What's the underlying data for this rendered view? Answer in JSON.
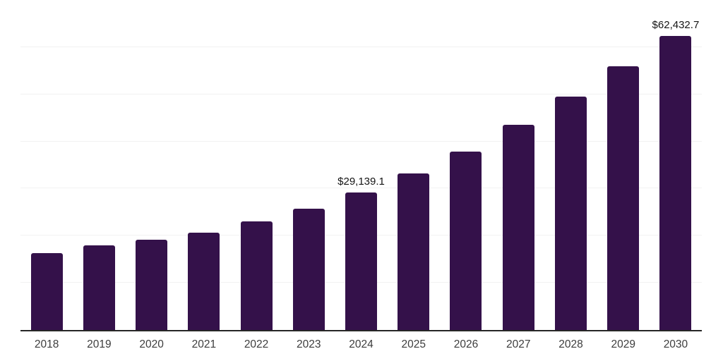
{
  "chart_data": {
    "type": "bar",
    "title": "",
    "xlabel": "",
    "ylabel": "",
    "categories": [
      "2018",
      "2019",
      "2020",
      "2021",
      "2022",
      "2023",
      "2024",
      "2025",
      "2026",
      "2027",
      "2028",
      "2029",
      "2030"
    ],
    "values": [
      16300,
      18000,
      19200,
      20700,
      23100,
      25800,
      29139.1,
      33200,
      37900,
      43500,
      49500,
      55900,
      62432.7
    ],
    "value_labels": {
      "2024": "$29,139.1",
      "2030": "$62,432.7"
    },
    "ylim": [
      0,
      70000
    ],
    "gridline_interval": 10000,
    "grid": "horizontal",
    "legend": "none",
    "y_axis_tick_labels": "none",
    "colors": {
      "bar": "#34114a",
      "grid": "#f2f2f2",
      "axis": "#262626",
      "tick_label": "#3d3d3d",
      "value_label": "#141414",
      "background": "#ffffff"
    }
  }
}
